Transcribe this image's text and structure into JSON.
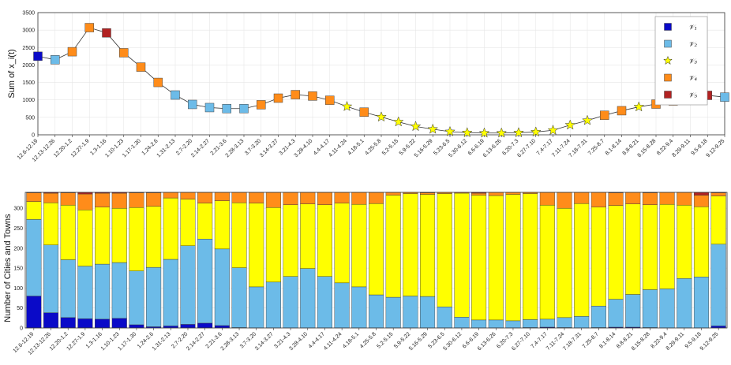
{
  "colors": {
    "V1": "#0a0ac8",
    "V2": "#6cbbe8",
    "V3": "#ffff00",
    "V4": "#ff8c1a",
    "V5": "#b22222",
    "grid": "#e6e6e6",
    "axis": "#333333"
  },
  "chart_data": [
    {
      "type": "line",
      "title": "",
      "xlabel": "",
      "ylabel": "Sum of x_i(t)",
      "ylim": [
        0,
        3500
      ],
      "yticks": [
        0,
        500,
        1000,
        1500,
        2000,
        2500,
        3000,
        3500
      ],
      "grid": true,
      "legend_position": "top-right",
      "legend": [
        {
          "key": "V1",
          "label": "𝒱₁",
          "marker": "square"
        },
        {
          "key": "V2",
          "label": "𝒱₂",
          "marker": "square"
        },
        {
          "key": "V3",
          "label": "𝒱₃",
          "marker": "star"
        },
        {
          "key": "V4",
          "label": "𝒱₄",
          "marker": "square"
        },
        {
          "key": "V5",
          "label": "𝒱₅",
          "marker": "square"
        }
      ],
      "categories": [
        "12.6-12.19",
        "12.13-12.26",
        "12.20-1.2",
        "12.27-1.9",
        "1.3-1.16",
        "1.10-1.23",
        "1.17-1.30",
        "1.24-2.6",
        "1.31-2.13",
        "2.7-2.20",
        "2.14-2.27",
        "2.21-3.6",
        "2.28-3.13",
        "3.7-3.20",
        "3.14-3.27",
        "3.21-4.3",
        "3.28-4.10",
        "4.4-4.17",
        "4.11-4.24",
        "4.18-5.1",
        "4.25-5.8",
        "5.2-5.15",
        "5.9-5.22",
        "5.16-5.29",
        "5.23-6.5",
        "5.30-6.12",
        "6.6-6.19",
        "6.13-6.26",
        "6.20-7.3",
        "6.27-7.10",
        "7.4-7.17",
        "7.11-7.24",
        "7.18-7.31",
        "7.25-8.7",
        "8.1-8.14",
        "8.8-8.21",
        "8.15-8.28",
        "8.22-9.4",
        "8.29-9.11",
        "9.5-9.18",
        "9.12-9.25"
      ],
      "values": [
        2250,
        2150,
        2380,
        3070,
        2920,
        2350,
        1940,
        1500,
        1140,
        870,
        780,
        750,
        750,
        860,
        1050,
        1150,
        1110,
        990,
        810,
        650,
        510,
        370,
        240,
        160,
        90,
        60,
        50,
        50,
        60,
        80,
        130,
        280,
        410,
        560,
        690,
        800,
        880,
        970,
        1070,
        1130,
        1080
      ],
      "point_class": [
        "V1",
        "V2",
        "V4",
        "V4",
        "V5",
        "V4",
        "V4",
        "V4",
        "V2",
        "V2",
        "V2",
        "V2",
        "V2",
        "V4",
        "V4",
        "V4",
        "V4",
        "V4",
        "V3",
        "V4",
        "V3",
        "V3",
        "V3",
        "V3",
        "V3",
        "V3",
        "V3",
        "V3",
        "V3",
        "V3",
        "V3",
        "V3",
        "V3",
        "V4",
        "V4",
        "V3",
        "V4",
        "V4",
        "V4",
        "V5",
        "V2"
      ]
    },
    {
      "type": "bar",
      "stacked": true,
      "title": "",
      "xlabel": "",
      "ylabel": "Number of Cities and Towns",
      "ylim": [
        0,
        340
      ],
      "yticks": [
        0,
        50,
        100,
        150,
        200,
        250,
        300
      ],
      "grid": true,
      "total": 340,
      "categories": [
        "12.6-12.19",
        "12.13-12.26",
        "12.20-1.2",
        "12.27-1.9",
        "1.3-1.16",
        "1.10-1.23",
        "1.17-1.30",
        "1.24-2.6",
        "1.31-2.13",
        "2.7-2.20",
        "2.14-2.27",
        "2.21-3.6",
        "2.28-3.13",
        "3.7-3.20",
        "3.14-3.27",
        "3.21-4.3",
        "3.28-4.10",
        "4.4-4.17",
        "4.11-4.24",
        "4.18-5.1",
        "4.25-5.8",
        "5.2-5.15",
        "5.9-5.22",
        "5.16-5.29",
        "5.23-6.5",
        "5.30-6.12",
        "6.6-6.19",
        "6.13-6.26",
        "6.20-7.3",
        "6.27-7.10",
        "7.4-7.17",
        "7.11-7.24",
        "7.18-7.31",
        "7.25-8.7",
        "8.1-8.14",
        "8.8-8.21",
        "8.15-8.28",
        "8.22-9.4",
        "8.29-9.11",
        "9.5-9.18",
        "9.12-9.25"
      ],
      "series": [
        {
          "key": "V1",
          "values": [
            80,
            38,
            26,
            23,
            22,
            24,
            8,
            3,
            5,
            9,
            12,
            6,
            1,
            0,
            0,
            0,
            0,
            0,
            0,
            0,
            0,
            0,
            0,
            0,
            0,
            0,
            0,
            0,
            0,
            1,
            2,
            1,
            0,
            1,
            2,
            2,
            1,
            0,
            0,
            0,
            5
          ]
        },
        {
          "key": "V2",
          "values": [
            192,
            170,
            145,
            132,
            138,
            140,
            135,
            149,
            167,
            197,
            211,
            192,
            150,
            103,
            115,
            129,
            149,
            129,
            113,
            103,
            83,
            77,
            80,
            79,
            53,
            27,
            20,
            20,
            18,
            20,
            20,
            25,
            29,
            54,
            70,
            82,
            95,
            98,
            124,
            128,
            205
          ]
        },
        {
          "key": "V3",
          "values": [
            45,
            106,
            137,
            141,
            143,
            136,
            159,
            153,
            154,
            117,
            90,
            121,
            163,
            210,
            187,
            180,
            162,
            180,
            200,
            207,
            229,
            256,
            257,
            256,
            284,
            311,
            313,
            312,
            317,
            316,
            286,
            274,
            283,
            248,
            235,
            227,
            213,
            212,
            184,
            176,
            121
          ]
        },
        {
          "key": "V4",
          "values": [
            22,
            24,
            31,
            40,
            35,
            38,
            37,
            34,
            14,
            17,
            27,
            21,
            26,
            27,
            38,
            31,
            29,
            31,
            27,
            30,
            28,
            7,
            3,
            4,
            3,
            2,
            5,
            8,
            5,
            3,
            32,
            40,
            28,
            37,
            32,
            29,
            30,
            30,
            32,
            29,
            8
          ]
        },
        {
          "key": "V5",
          "values": [
            1,
            2,
            1,
            4,
            2,
            2,
            1,
            1,
            0,
            0,
            0,
            0,
            0,
            0,
            0,
            0,
            0,
            0,
            0,
            0,
            0,
            0,
            0,
            1,
            0,
            0,
            2,
            0,
            0,
            0,
            0,
            0,
            0,
            0,
            1,
            0,
            1,
            0,
            0,
            7,
            1
          ]
        }
      ]
    }
  ]
}
